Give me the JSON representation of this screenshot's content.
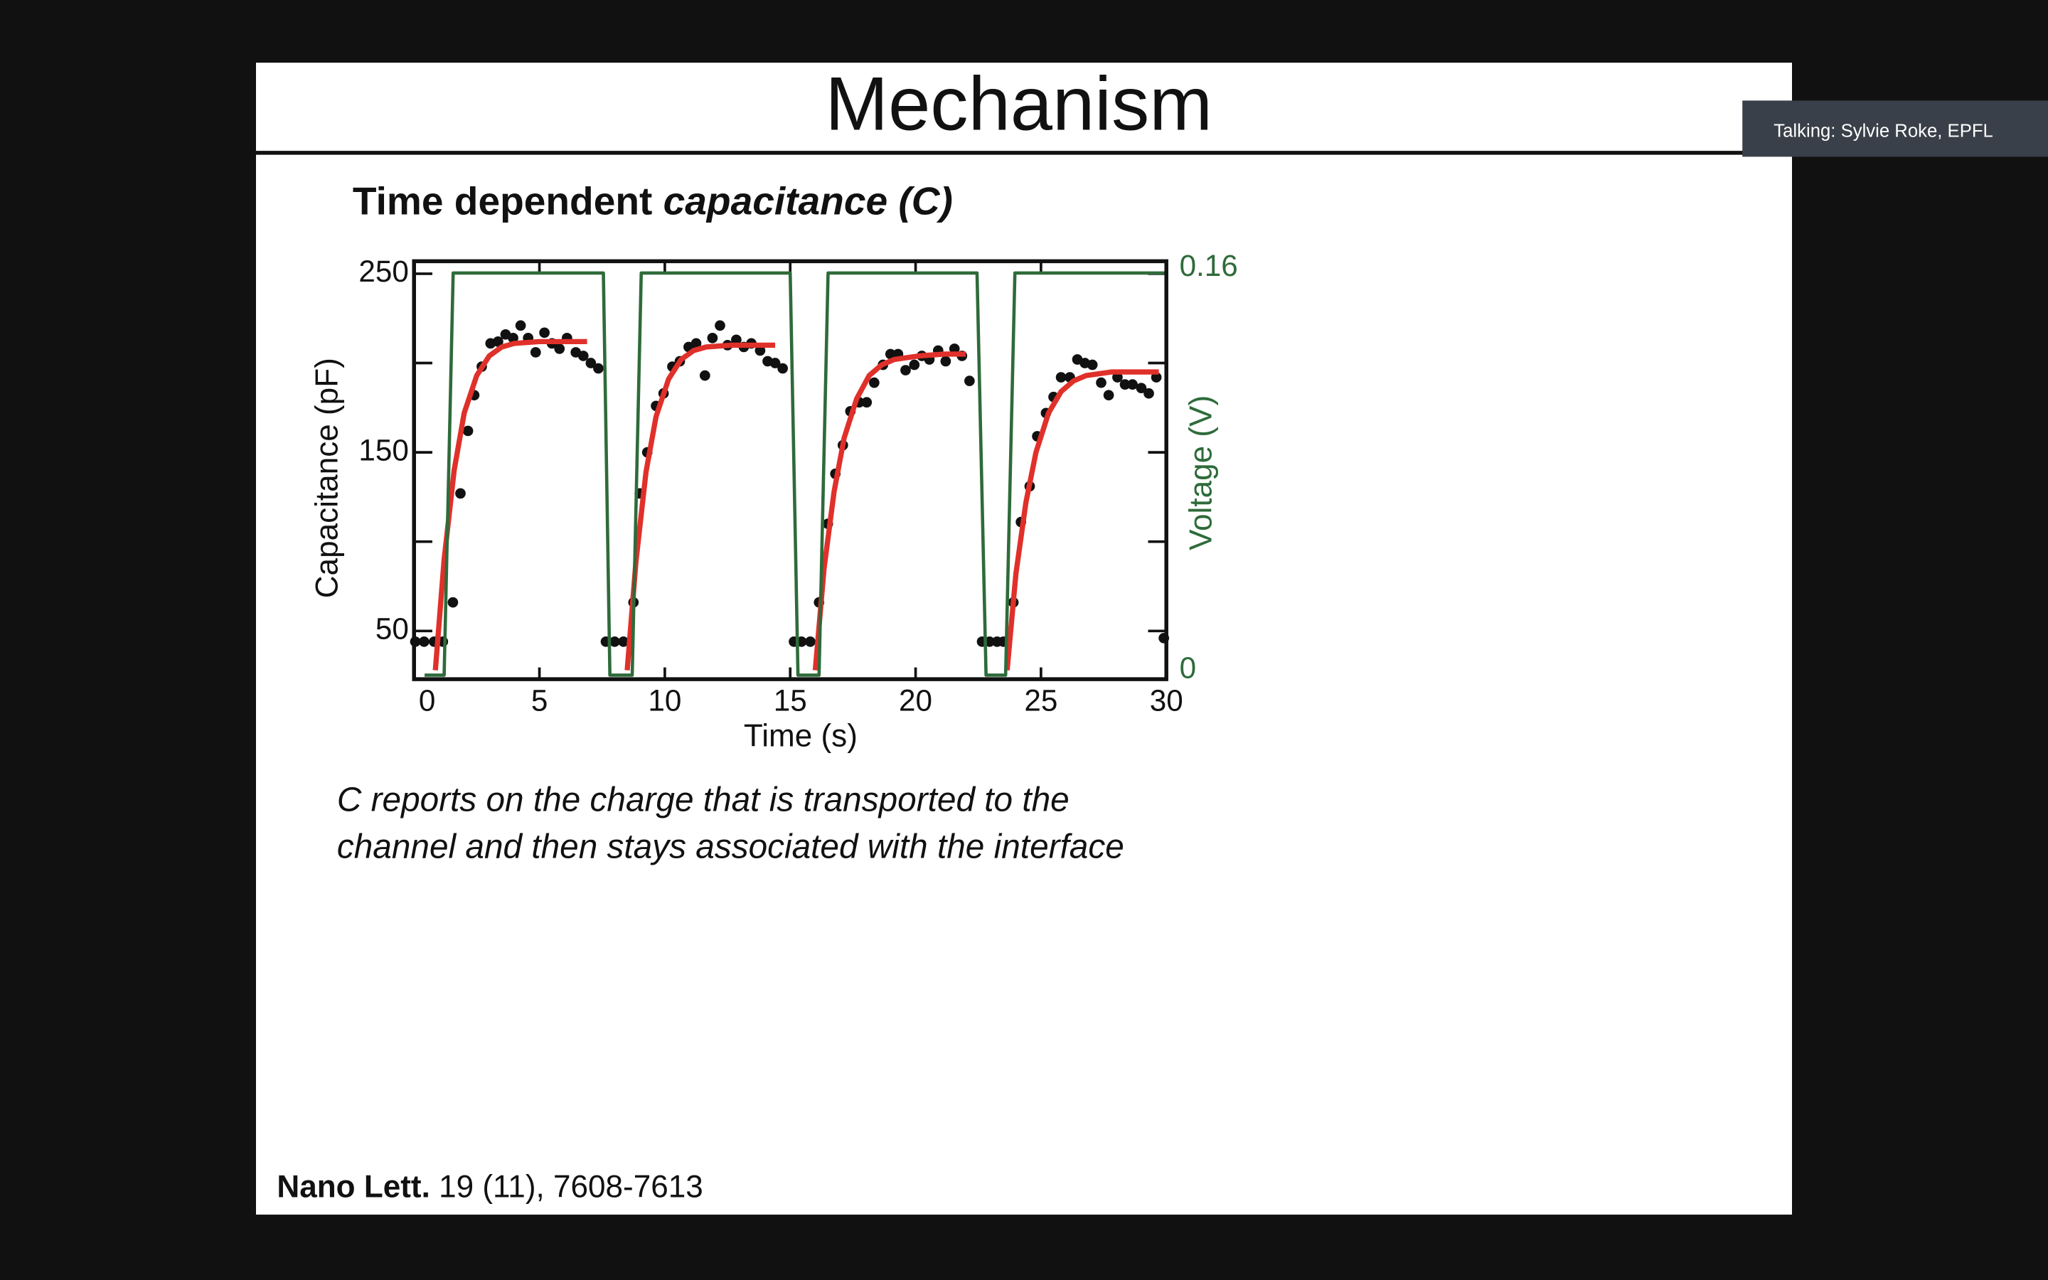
{
  "title": "Mechanism",
  "speaker": "Talking: Sylvie Roke, EPFL",
  "subtitle": {
    "plain": "Time dependent ",
    "italic": "capacitance (C)"
  },
  "chart_data": {
    "type": "scatter",
    "x_label": "Time (s)",
    "y_label": "Capacitance (pF)",
    "y2_label": "Voltage (V)",
    "xlim": [
      0,
      30
    ],
    "ylim": [
      23,
      257
    ],
    "y2lim": [
      -0.0016,
      0.1647
    ],
    "xticks": [
      0,
      5,
      10,
      15,
      20,
      25,
      30
    ],
    "yticks": [
      50,
      150,
      250
    ],
    "yminor_ticks": [
      100,
      200
    ],
    "y2ticks": [
      0,
      0.16
    ],
    "series": [
      {
        "style": "markers",
        "color": "#111111",
        "x": [
          0.05,
          0.4,
          0.8,
          1.15,
          1.55,
          1.85,
          2.15,
          2.4,
          2.7,
          3.05,
          3.35,
          3.65,
          3.95,
          4.25,
          4.55,
          4.85,
          5.2,
          5.5,
          5.8,
          6.1,
          6.45,
          6.75,
          7.05,
          7.35,
          7.65,
          8.0,
          8.35,
          8.75,
          9.0,
          9.3,
          9.65,
          9.95,
          10.3,
          10.6,
          10.95,
          11.25,
          11.6,
          11.9,
          12.2,
          12.5,
          12.85,
          13.15,
          13.45,
          13.8,
          14.1,
          14.4,
          14.7,
          15.15,
          15.45,
          15.8,
          16.15,
          16.5,
          16.8,
          17.1,
          17.4,
          17.75,
          18.05,
          18.35,
          18.7,
          19.0,
          19.3,
          19.6,
          19.95,
          20.25,
          20.55,
          20.9,
          21.2,
          21.55,
          21.85,
          22.15,
          22.65,
          22.95,
          23.25,
          23.5,
          23.9,
          24.2,
          24.55,
          24.85,
          25.2,
          25.5,
          25.8,
          26.15,
          26.45,
          26.75,
          27.05,
          27.4,
          27.7,
          28.05,
          28.35,
          28.65,
          29.0,
          29.3,
          29.6,
          29.9
        ],
        "values": [
          44,
          44,
          44,
          44,
          66,
          127,
          162,
          182,
          198,
          211,
          212,
          216,
          214,
          221,
          214,
          206,
          217,
          211,
          208,
          214,
          206,
          204,
          200,
          197,
          44,
          44,
          44,
          66,
          127,
          150,
          176,
          183,
          198,
          201,
          209,
          211,
          193,
          214,
          221,
          210,
          213,
          209,
          211,
          207,
          201,
          200,
          197,
          44,
          44,
          44,
          66,
          110,
          138,
          154,
          173,
          178,
          178,
          189,
          199,
          205,
          205,
          196,
          199,
          204,
          202,
          207,
          201,
          208,
          204,
          190,
          44,
          44,
          44,
          44,
          66,
          111,
          131,
          159,
          172,
          181,
          192,
          192,
          202,
          200,
          199,
          189,
          182,
          192,
          188,
          188,
          186,
          183,
          192,
          46
        ]
      },
      {
        "style": "line",
        "color": "#e0302a",
        "x": [
          0.85,
          1.2,
          1.6,
          2.0,
          2.5,
          3.0,
          3.5,
          4.0,
          5.0,
          6.0,
          6.9
        ],
        "values": [
          28,
          90,
          140,
          172,
          193,
          204,
          209,
          211,
          212,
          212,
          212
        ]
      },
      {
        "style": "line",
        "color": "#e0302a",
        "x": [
          8.5,
          8.85,
          9.25,
          9.65,
          10.15,
          10.65,
          11.15,
          11.65,
          12.65,
          13.65,
          14.4
        ],
        "values": [
          28,
          89,
          139,
          170,
          191,
          202,
          207,
          209,
          210,
          210,
          210
        ]
      },
      {
        "style": "line",
        "color": "#e0302a",
        "x": [
          16.0,
          16.35,
          16.75,
          17.15,
          17.65,
          18.15,
          18.65,
          19.15,
          20.15,
          21.15,
          22.0
        ],
        "values": [
          28,
          85,
          128,
          158,
          180,
          193,
          199,
          202,
          204,
          205,
          205
        ]
      },
      {
        "style": "line",
        "color": "#e0302a",
        "x": [
          23.65,
          24.0,
          24.4,
          24.8,
          25.3,
          25.8,
          26.3,
          26.8,
          27.8,
          28.8,
          29.7
        ],
        "values": [
          28,
          82,
          122,
          150,
          172,
          184,
          190,
          193,
          195,
          195,
          195
        ]
      },
      {
        "style": "line",
        "color": "#2e6b3a",
        "axis": "y2",
        "x": [
          0.42,
          1.2,
          1.56,
          7.55,
          7.81,
          8.7,
          9.06,
          15.0,
          15.31,
          16.15,
          16.51,
          22.45,
          22.81,
          23.59,
          23.96,
          30
        ],
        "values": [
          0,
          0,
          0.16,
          0.16,
          0,
          0,
          0.16,
          0.16,
          0,
          0,
          0.16,
          0.16,
          0,
          0,
          0.16,
          0.16
        ]
      }
    ]
  },
  "caption": [
    "C reports on the charge that is transported to the",
    "channel and then stays associated with the interface"
  ],
  "reference": {
    "journal": "Nano Lett.",
    "details": " 19 (11), 7608-7613"
  }
}
